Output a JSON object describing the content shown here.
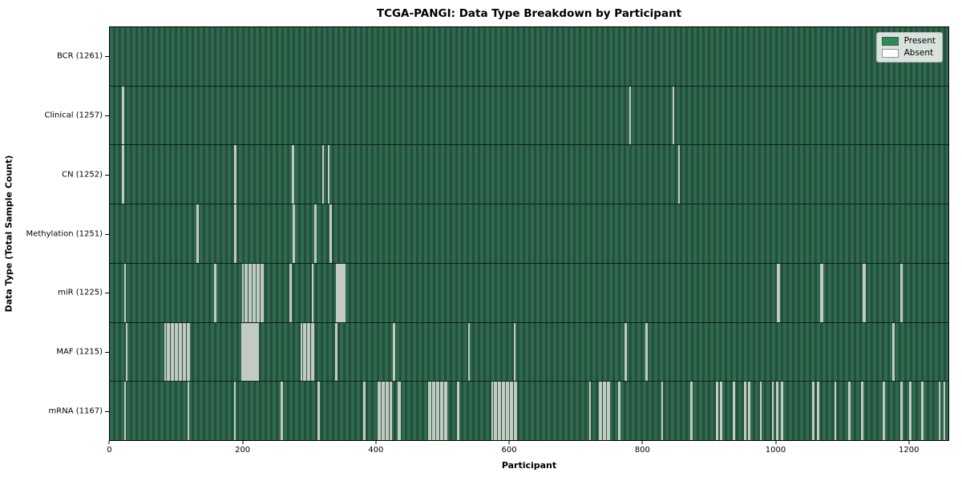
{
  "chart_data": {
    "type": "heatmap",
    "title": "TCGA-PANGI: Data Type Breakdown by Participant",
    "xlabel": "Participant",
    "ylabel": "Data Type (Total Sample Count)",
    "n_participants": 1261,
    "x_range": [
      0,
      1261
    ],
    "xticks": [
      {
        "value": 0,
        "label": "0"
      },
      {
        "value": 200,
        "label": "200"
      },
      {
        "value": 400,
        "label": "400"
      },
      {
        "value": 600,
        "label": "600"
      },
      {
        "value": 800,
        "label": "800"
      },
      {
        "value": 1000,
        "label": "1000"
      },
      {
        "value": 1200,
        "label": "1200"
      }
    ],
    "legend": [
      {
        "label": "Present",
        "color": "#2e8b57"
      },
      {
        "label": "Absent",
        "color": "#ffffff"
      }
    ],
    "rows": [
      {
        "label": "BCR (1261)",
        "name": "BCR",
        "present_count": 1261,
        "absent_positions": []
      },
      {
        "label": "Clinical (1257)",
        "name": "Clinical",
        "present_count": 1257,
        "absent_positions": [
          19,
          20,
          782,
          847
        ]
      },
      {
        "label": "CN (1252)",
        "name": "CN",
        "present_count": 1252,
        "absent_positions": [
          19,
          20,
          188,
          189,
          274,
          275,
          320,
          329,
          855
        ]
      },
      {
        "label": "Methylation (1251)",
        "name": "Methylation",
        "present_count": 1251,
        "absent_positions": [
          131,
          132,
          188,
          189,
          276,
          277,
          308,
          309,
          331,
          332
        ]
      },
      {
        "label": "miR (1225)",
        "name": "miR",
        "present_count": 1225,
        "absent_positions": [
          22,
          158,
          159,
          200,
          203,
          206,
          209,
          212,
          215,
          218,
          221,
          224,
          227,
          230,
          271,
          272,
          304,
          305,
          341,
          343,
          345,
          347,
          349,
          351,
          353,
          1004,
          1005,
          1006,
          1069,
          1070,
          1071,
          1133,
          1134,
          1135,
          1189,
          1190
        ]
      },
      {
        "label": "MAF (1215)",
        "name": "MAF",
        "present_count": 1215,
        "absent_positions": [
          25,
          83,
          86,
          89,
          92,
          95,
          98,
          101,
          104,
          107,
          110,
          113,
          116,
          119,
          199,
          201,
          203,
          205,
          207,
          209,
          211,
          213,
          215,
          217,
          219,
          221,
          223,
          288,
          291,
          294,
          297,
          300,
          303,
          306,
          340,
          341,
          426,
          427,
          540,
          608,
          775,
          776,
          806,
          807,
          1177,
          1178
        ]
      },
      {
        "label": "mRNA (1167)",
        "name": "mRNA",
        "present_count": 1167,
        "absent_positions": [
          22,
          118,
          187,
          258,
          259,
          313,
          314,
          382,
          383,
          403,
          406,
          409,
          412,
          415,
          418,
          421,
          423,
          434,
          436,
          479,
          482,
          485,
          488,
          491,
          494,
          497,
          500,
          503,
          506,
          523,
          524,
          575,
          578,
          581,
          584,
          587,
          590,
          593,
          596,
          599,
          602,
          605,
          608,
          611,
          722,
          736,
          739,
          742,
          745,
          748,
          751,
          765,
          766,
          830,
          874,
          875,
          912,
          913,
          918,
          919,
          938,
          939,
          954,
          955,
          960,
          961,
          978,
          979,
          996,
          997,
          1003,
          1004,
          1010,
          1011,
          1057,
          1058,
          1064,
          1065,
          1090,
          1091,
          1111,
          1112,
          1130,
          1131,
          1163,
          1164,
          1189,
          1190,
          1203,
          1204,
          1221,
          1222,
          1247,
          1254
        ]
      }
    ],
    "layout": {
      "grid": false,
      "legend_position": "upper right"
    }
  },
  "colors": {
    "present": "#2e8b57",
    "absent": "#ffffff",
    "row_fill_light": "#2f6a4e",
    "row_fill_dark": "#22503c",
    "absent_stripe": "#c2cac2",
    "divider": "#0e1f17",
    "legend_bg": "#f2f4f2"
  }
}
